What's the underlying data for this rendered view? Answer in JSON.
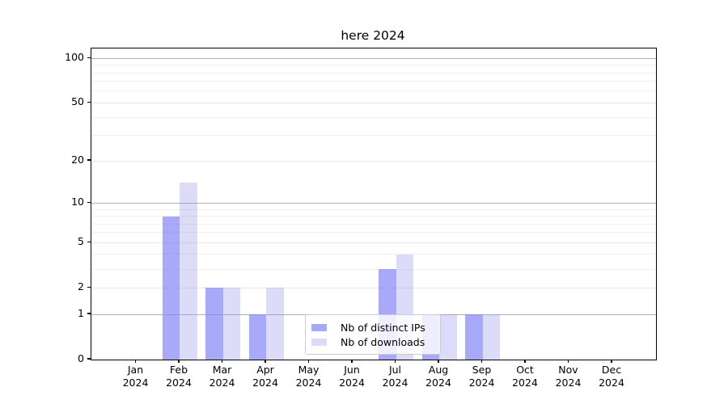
{
  "figure": {
    "background": "#ffffff",
    "text_color": "#000000"
  },
  "chart_data": {
    "type": "bar",
    "title": "here 2024",
    "xlabel": "",
    "ylabel": "",
    "x": {
      "months": [
        "Jan",
        "Feb",
        "Mar",
        "Apr",
        "May",
        "Jun",
        "Jul",
        "Aug",
        "Sep",
        "Oct",
        "Nov",
        "Dec"
      ],
      "year": "2024"
    },
    "series": [
      {
        "name": "Nb of distinct IPs",
        "fill": "rgba(128,128,247,0.68)",
        "solid_equivalent": "#a8a8f8",
        "values": [
          0,
          8,
          2,
          1,
          0,
          0,
          3,
          1,
          1,
          0,
          0,
          0
        ]
      },
      {
        "name": "Nb of downloads",
        "fill": "rgba(140,140,235,0.30)",
        "solid_equivalent": "#dcdcf9",
        "values": [
          0,
          14,
          2,
          2,
          0,
          0,
          4,
          1,
          1,
          0,
          0,
          0
        ]
      }
    ],
    "yscale": "log1p",
    "ylim": [
      0,
      115
    ],
    "yticks": [
      0,
      1,
      2,
      5,
      10,
      20,
      50,
      100
    ],
    "grid": {
      "major_values": [
        1,
        10,
        100
      ],
      "labeled_values": [
        2,
        5,
        20,
        50
      ],
      "minor_values": [
        3,
        4,
        6,
        7,
        8,
        9,
        30,
        40,
        60,
        70,
        80,
        90
      ],
      "major_color": "#b0b0b0",
      "labeled_color": "#e8e8e8",
      "minor_color": "#f0f0f0"
    },
    "legend_position": "lower center",
    "spine_color": "#000000"
  }
}
